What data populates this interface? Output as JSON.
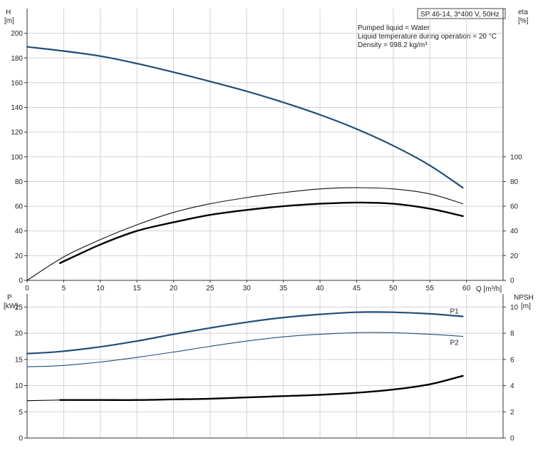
{
  "chart_data": [
    {
      "type": "line",
      "panel": "performance",
      "info_box": {
        "model": "SP 46-14, 3*400 V, 50Hz",
        "lines": [
          "Pumped liquid = Water",
          "Liquid temperature during operation = 20 °C",
          "Density = 998.2 kg/m³"
        ]
      },
      "left_axis": {
        "label": "H",
        "unit": "[m]",
        "min": 0,
        "max": 220,
        "ticks": [
          0,
          20,
          40,
          60,
          80,
          100,
          120,
          140,
          160,
          180,
          200
        ]
      },
      "right_axis": {
        "label": "eta",
        "unit": "[%]",
        "min": 0,
        "max": 220,
        "ticks": [
          0,
          20,
          40,
          60,
          80,
          100
        ]
      },
      "x_axis": {
        "label": "Q [m³/h]",
        "min": 0,
        "max": 65,
        "ticks": [
          0,
          5,
          10,
          15,
          20,
          25,
          30,
          35,
          40,
          45,
          50,
          55,
          60
        ]
      },
      "grid": true,
      "series": [
        {
          "key": "H",
          "color": "#1f4e79",
          "width": 2.2,
          "axis": "left",
          "x": [
            0,
            4.5,
            10,
            15,
            20,
            25,
            30,
            35,
            40,
            45,
            50,
            55,
            59.5
          ],
          "y": [
            189,
            186,
            181.5,
            175.5,
            168.5,
            161,
            153,
            144,
            134,
            122.5,
            109,
            93,
            75
          ]
        },
        {
          "key": "eta_thin",
          "color": "#111111",
          "width": 1.1,
          "axis": "right",
          "x": [
            0,
            5,
            10,
            15,
            20,
            25,
            30,
            35,
            40,
            45,
            50,
            55,
            59.5
          ],
          "y": [
            0,
            19,
            33,
            45,
            55,
            62,
            67,
            71,
            74,
            75,
            74,
            70,
            62
          ]
        },
        {
          "key": "eta_thick",
          "color": "#000000",
          "width": 2.4,
          "axis": "right",
          "x": [
            4.5,
            10,
            15,
            20,
            25,
            30,
            35,
            40,
            45,
            50,
            55,
            59.5
          ],
          "y": [
            14,
            29,
            40,
            47,
            53,
            57,
            60,
            62,
            63,
            62,
            58,
            52
          ]
        }
      ]
    },
    {
      "type": "line",
      "panel": "power_npsh",
      "left_axis": {
        "label": "P",
        "unit": "[kW]",
        "min": 0,
        "max": 27.5,
        "ticks": [
          0,
          5,
          10,
          15,
          20,
          25
        ]
      },
      "right_axis": {
        "label": "NPSH",
        "unit": "[m]",
        "min": 0,
        "max": 11,
        "ticks": [
          0,
          2,
          4,
          6,
          8,
          10
        ]
      },
      "x_axis": {
        "min": 0,
        "max": 65
      },
      "grid": true,
      "series": [
        {
          "key": "P1",
          "name": "P1",
          "color": "#1f4e79",
          "width": 2.2,
          "axis": "left",
          "x": [
            0,
            4.5,
            10,
            15,
            20,
            25,
            30,
            35,
            40,
            45,
            50,
            55,
            59.5
          ],
          "y": [
            16.1,
            16.5,
            17.4,
            18.5,
            19.8,
            21,
            22.1,
            23,
            23.6,
            24,
            24,
            23.7,
            23.2
          ]
        },
        {
          "key": "P2",
          "name": "P2",
          "color": "#1f4e79",
          "width": 1.1,
          "axis": "left",
          "x": [
            0,
            4.5,
            10,
            15,
            20,
            25,
            30,
            35,
            40,
            45,
            50,
            55,
            59.5
          ],
          "y": [
            13.6,
            13.8,
            14.5,
            15.4,
            16.4,
            17.5,
            18.5,
            19.3,
            19.8,
            20.1,
            20.1,
            19.8,
            19.4
          ]
        },
        {
          "key": "NPSH_thin",
          "color": "#000000",
          "width": 1.1,
          "axis": "right",
          "x": [
            0,
            4.5
          ],
          "y": [
            2.85,
            2.9
          ]
        },
        {
          "key": "NPSH",
          "color": "#000000",
          "width": 2.4,
          "axis": "right",
          "x": [
            4.5,
            10,
            15,
            20,
            25,
            30,
            35,
            40,
            45,
            50,
            55,
            59.5
          ],
          "y": [
            2.9,
            2.9,
            2.9,
            2.95,
            3.0,
            3.1,
            3.2,
            3.3,
            3.45,
            3.7,
            4.1,
            4.75
          ]
        }
      ]
    }
  ]
}
